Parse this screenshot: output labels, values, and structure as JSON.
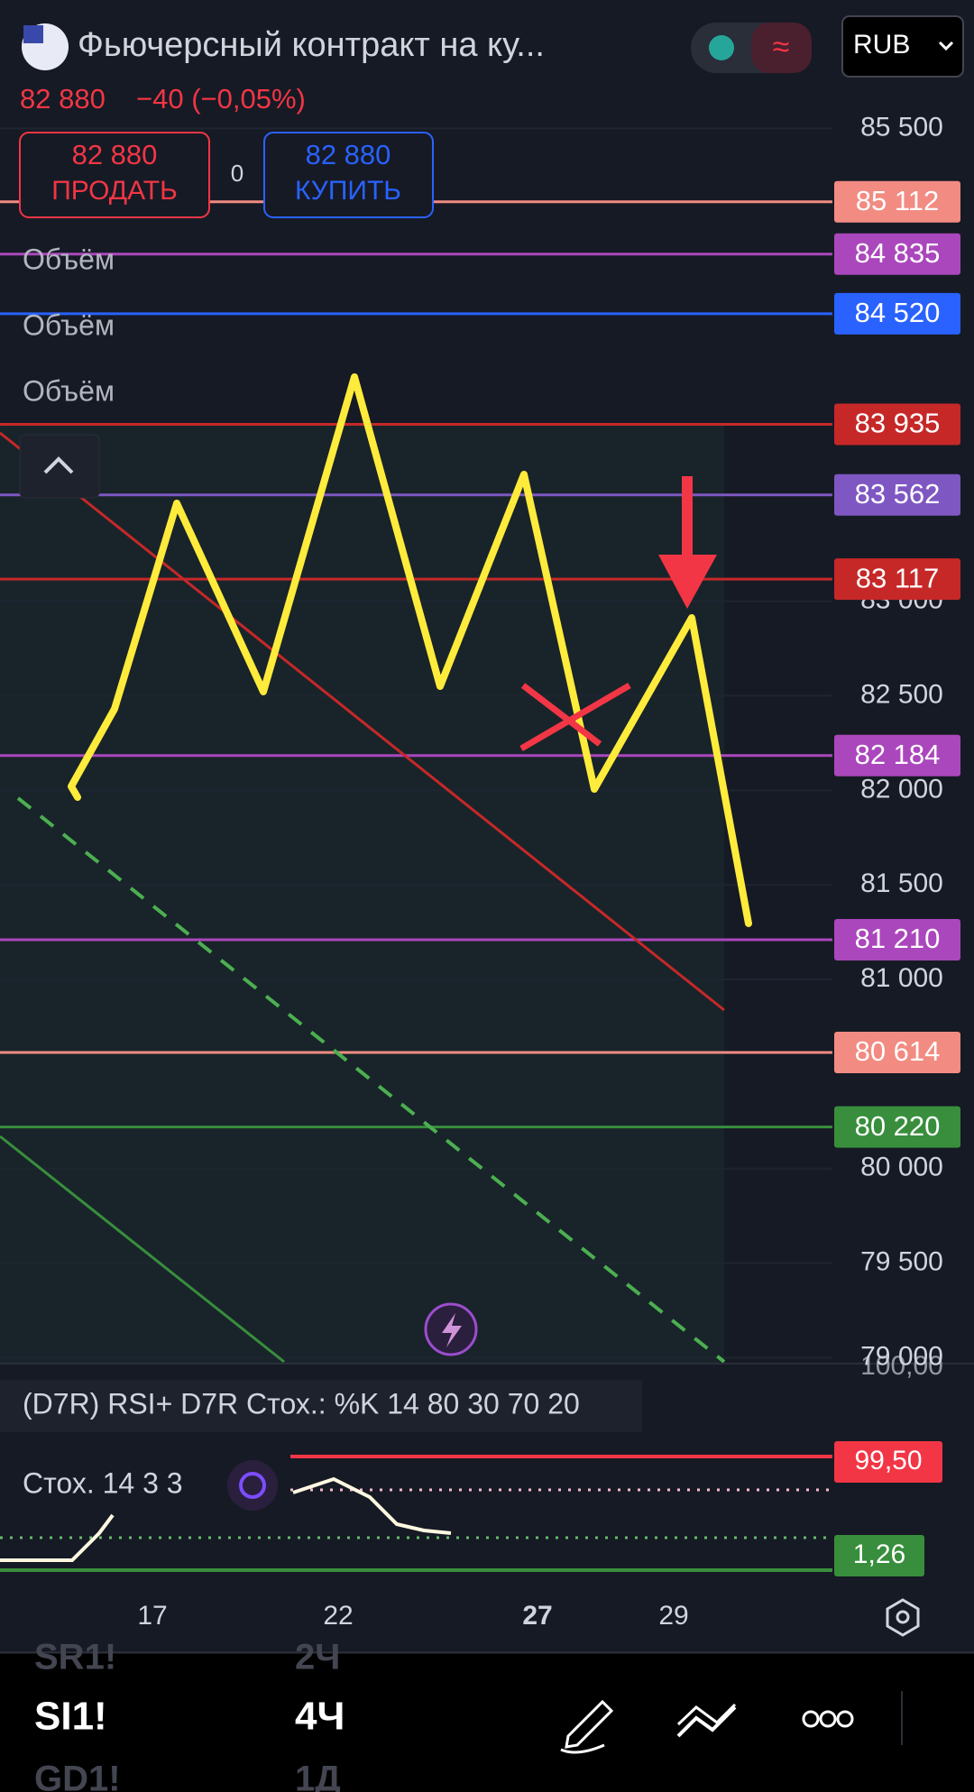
{
  "header": {
    "title": "Фьючерсный контракт на ку...",
    "currency": "RUB",
    "price": "82 880",
    "change": "−40 (−0,05%)"
  },
  "trade": {
    "sell_price": "82 880",
    "sell_label": "ПРОДАТЬ",
    "spread": "0",
    "buy_price": "82 880",
    "buy_label": "КУПИТЬ"
  },
  "indicators": [
    "Объём",
    "Объём",
    "Объём"
  ],
  "price_axis": {
    "ylim": [
      78740,
      85740
    ],
    "yticks": [
      {
        "value": 85500,
        "label": "85 500"
      },
      {
        "value": 83000,
        "label": "83 000"
      },
      {
        "value": 82500,
        "label": "82 500"
      },
      {
        "value": 82000,
        "label": "82 000"
      },
      {
        "value": 81500,
        "label": "81 500"
      },
      {
        "value": 81000,
        "label": "81 000"
      },
      {
        "value": 80000,
        "label": "80 000"
      },
      {
        "value": 79500,
        "label": "79 500"
      },
      {
        "value": 79000,
        "label": "79 000"
      }
    ],
    "levels": [
      {
        "value": 85112,
        "label": "85 112",
        "color": "#f28b82"
      },
      {
        "value": 84835,
        "label": "84 835",
        "color": "#ab47bc"
      },
      {
        "value": 84520,
        "label": "84 520",
        "color": "#2962ff"
      },
      {
        "value": 83935,
        "label": "83 935",
        "color": "#c62828"
      },
      {
        "value": 83562,
        "label": "83 562",
        "color": "#7e57c2"
      },
      {
        "value": 83117,
        "label": "83 117",
        "color": "#c62828"
      },
      {
        "value": 82184,
        "label": "82 184",
        "color": "#ab47bc"
      },
      {
        "value": 81210,
        "label": "81 210",
        "color": "#ab47bc"
      },
      {
        "value": 80614,
        "label": "80 614",
        "color": "#f28b82"
      },
      {
        "value": 80220,
        "label": "80 220",
        "color": "#388e3c"
      }
    ]
  },
  "oscillator": {
    "axis_top": "100,00",
    "rsi_label": "(D7R) RSI+ D7R Стох.: %K 14 80 30 70 20",
    "stoch_label": "Стох. 14 3 3",
    "upper": "99,50",
    "lower": "1,26"
  },
  "time_axis": [
    "17",
    "22",
    "27",
    "29"
  ],
  "watchlist": [
    {
      "symbol": "SR1!",
      "interval": "2Ч"
    },
    {
      "symbol": "SI1!",
      "interval": "4Ч"
    },
    {
      "symbol": "GD1!",
      "interval": "1Д"
    }
  ]
}
